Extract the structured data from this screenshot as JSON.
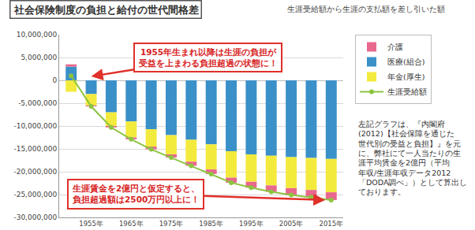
{
  "chart_data": {
    "type": "bar",
    "stacked": true,
    "grid": true,
    "legend": "top-right",
    "title": "社会保険制度の負担と給付の世代間格差",
    "subtitle": "生涯受給額から生涯の支払額を差し引いた額",
    "categories": [
      null,
      "1955年",
      null,
      "1965年",
      null,
      "1975年",
      null,
      "1985年",
      null,
      "1995年",
      null,
      "2005年",
      null,
      "2015年"
    ],
    "series": [
      {
        "name": "介護",
        "color": "#e8688e",
        "type": "bar",
        "values": [
          500000,
          -200000,
          -300000,
          -400000,
          -600000,
          -700000,
          -900000,
          -1000000,
          -1100000,
          -1300000,
          -1400000,
          -1500000,
          -1600000,
          -1700000
        ]
      },
      {
        "name": "医療(組合)",
        "color": "#3a90c8",
        "type": "bar",
        "values": [
          3000000,
          -3000000,
          -7000000,
          -9000000,
          -10700000,
          -12000000,
          -13000000,
          -14000000,
          -15500000,
          -16200000,
          -16500000,
          -16800000,
          -17000000,
          -17200000
        ]
      },
      {
        "name": "年金(厚生)",
        "color": "#f3ea3e",
        "type": "bar",
        "values": [
          -2500000,
          -2500000,
          -3000000,
          -3500000,
          -3800000,
          -4200000,
          -4800000,
          -5500000,
          -5800000,
          -6000000,
          -6500000,
          -6800000,
          -7000000,
          -7300000
        ]
      },
      {
        "name": "生涯受給額",
        "color": "#8cc43f",
        "type": "line",
        "marker": "circle",
        "line_style": "solid",
        "values": [
          1000000,
          -5700000,
          -10300000,
          -12900000,
          -15100000,
          -16900000,
          -18700000,
          -20500000,
          -22400000,
          -23500000,
          -24400000,
          -25100000,
          -25600000,
          -26200000
        ]
      }
    ],
    "ylim": [
      -30000000,
      10000000
    ],
    "yticks": [
      {
        "value": 10000000,
        "label": "10,000,000"
      },
      {
        "value": 5000000,
        "label": "5,000,000"
      },
      0,
      {
        "value": -5000000,
        "label": "-5,000,000"
      },
      {
        "value": -10000000,
        "label": "-10,000,000"
      },
      {
        "value": -15000000,
        "label": "-15,000,000"
      },
      {
        "value": -20000000,
        "label": "-20,000,000"
      },
      {
        "value": -25000000,
        "label": "-25,000,000"
      },
      {
        "value": -30000000,
        "label": "-30,000,000"
      }
    ],
    "annotations": [
      {
        "lines": [
          "1955年生まれ以降は生涯の負担が",
          "受益を上まわる負担超過の状態に！"
        ],
        "category": "1955年"
      },
      {
        "lines": [
          "生涯賃金を2億円と仮定すると、",
          "負担超過額は2500万円以上に！"
        ],
        "category": "2015年"
      },
      {
        "lines": [
          "左記グラフは、『内閣府",
          "(2012)【社会保障を通じた",
          "世代別の受益と負担】』を元",
          "に、弊社にて一人当たりの生",
          "涯平均賃金を2億円（平均",
          "年収/生涯年収データ2012",
          "「DODA調べ」）として算出し",
          "ております。"
        ]
      }
    ]
  }
}
